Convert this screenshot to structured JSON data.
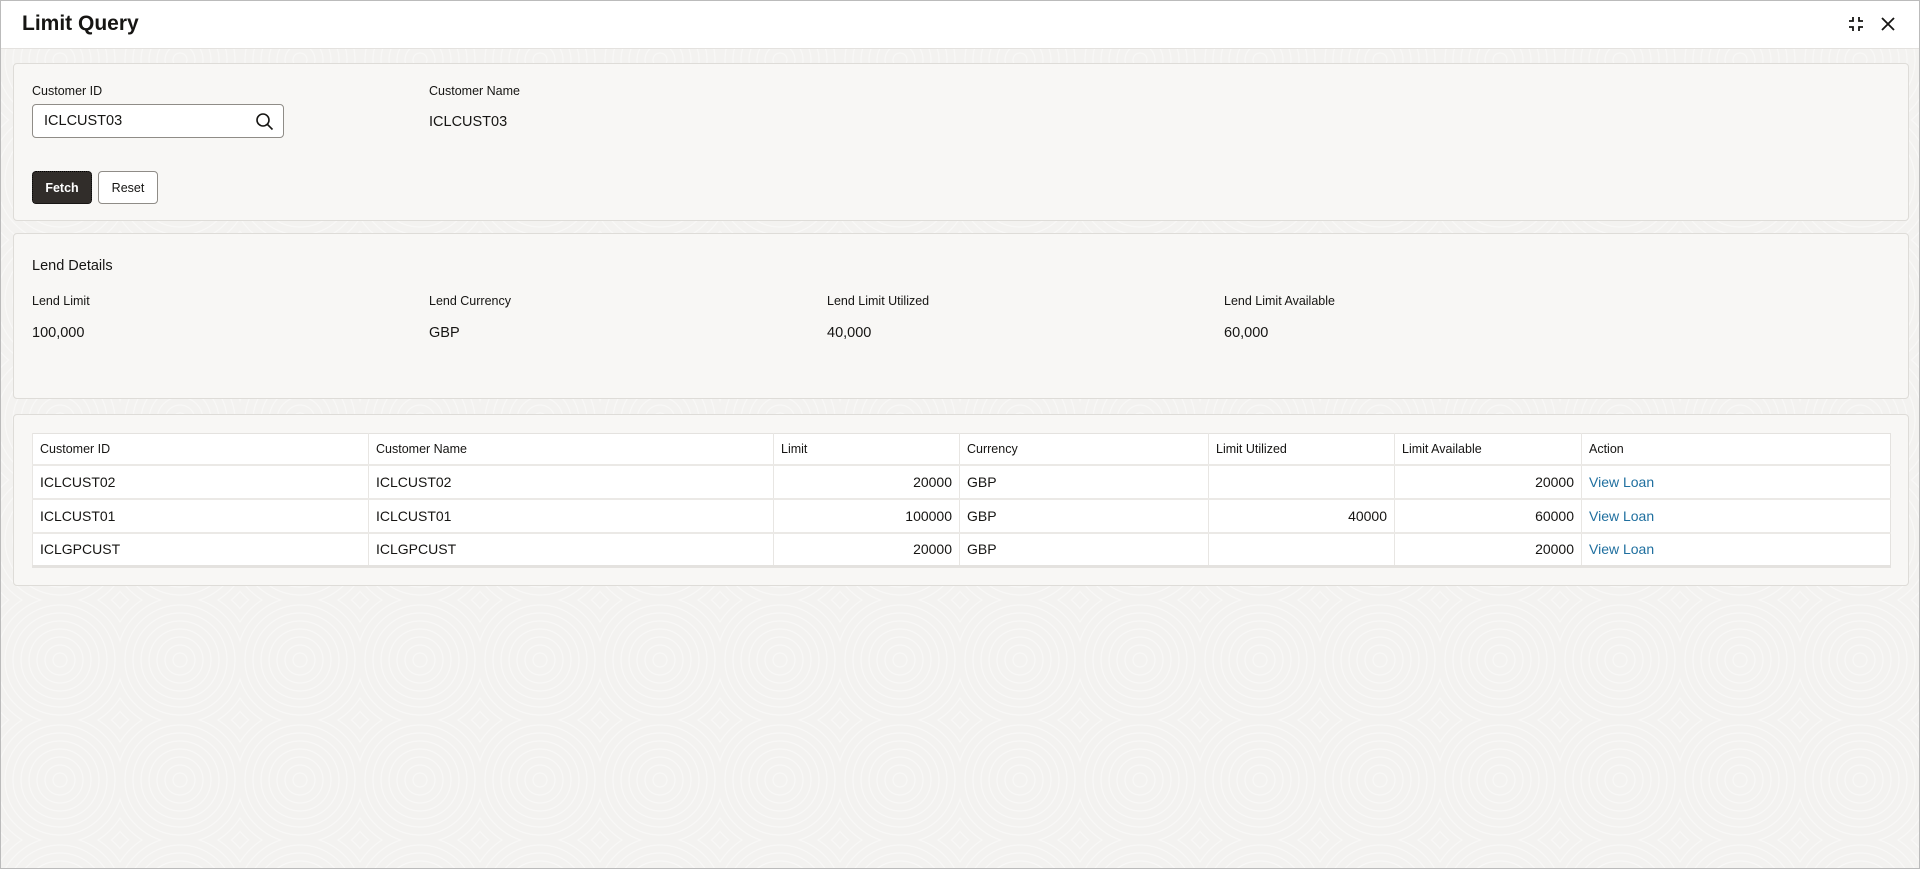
{
  "header": {
    "title": "Limit Query",
    "icons": [
      "collapse-icon",
      "close-icon"
    ]
  },
  "search": {
    "customer_id_label": "Customer ID",
    "customer_id_value": "ICLCUST03",
    "customer_name_label": "Customer Name",
    "customer_name_value": "ICLCUST03",
    "fetch_label": "Fetch",
    "reset_label": "Reset"
  },
  "lend": {
    "title": "Lend Details",
    "fields": [
      {
        "label": "Lend Limit",
        "value": "100,000"
      },
      {
        "label": "Lend Currency",
        "value": "GBP"
      },
      {
        "label": "Lend Limit Utilized",
        "value": "40,000"
      },
      {
        "label": "Lend Limit Available",
        "value": "60,000"
      }
    ]
  },
  "table": {
    "columns": [
      "Customer ID",
      "Customer Name",
      "Limit",
      "Currency",
      "Limit Utilized",
      "Limit Available",
      "Action"
    ],
    "rows": [
      {
        "id": "ICLCUST02",
        "name": "ICLCUST02",
        "limit": "20000",
        "currency": "GBP",
        "utilized": "",
        "available": "20000",
        "action": "View Loan"
      },
      {
        "id": "ICLCUST01",
        "name": "ICLCUST01",
        "limit": "100000",
        "currency": "GBP",
        "utilized": "40000",
        "available": "60000",
        "action": "View Loan"
      },
      {
        "id": "ICLGPCUST",
        "name": "ICLGPCUST",
        "limit": "20000",
        "currency": "GBP",
        "utilized": "",
        "available": "20000",
        "action": "View Loan"
      }
    ]
  },
  "colors": {
    "primary_button": "#312d2a",
    "link": "#1f6f9f"
  }
}
